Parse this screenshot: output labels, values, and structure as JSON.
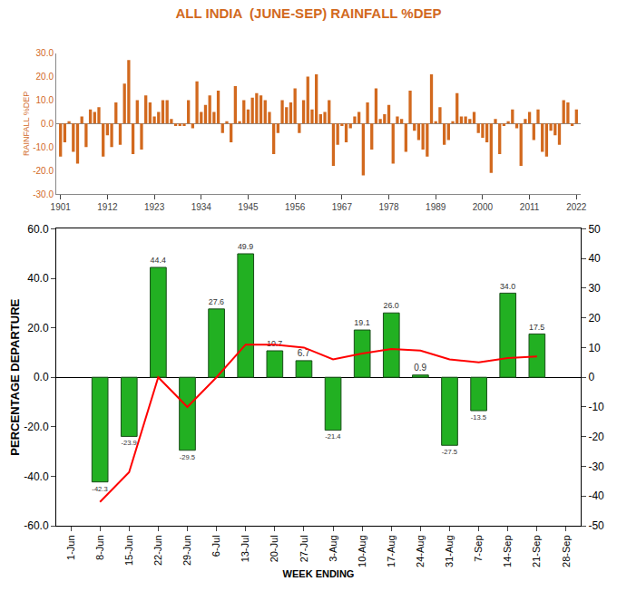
{
  "chart_data": [
    {
      "type": "bar",
      "title": "ALL INDIA  (JUNE-SEP) RAINFALL %DEP",
      "y_label": "RAINFALL %DEP",
      "color": "#d2691e",
      "x": [
        1901,
        1902,
        1903,
        1904,
        1905,
        1906,
        1907,
        1908,
        1909,
        1910,
        1911,
        1912,
        1913,
        1914,
        1915,
        1916,
        1917,
        1918,
        1919,
        1920,
        1921,
        1922,
        1923,
        1924,
        1925,
        1926,
        1927,
        1928,
        1929,
        1930,
        1931,
        1932,
        1933,
        1934,
        1935,
        1936,
        1937,
        1938,
        1939,
        1940,
        1941,
        1942,
        1943,
        1944,
        1945,
        1946,
        1947,
        1948,
        1949,
        1950,
        1951,
        1952,
        1953,
        1954,
        1955,
        1956,
        1957,
        1958,
        1959,
        1960,
        1961,
        1962,
        1963,
        1964,
        1965,
        1966,
        1967,
        1968,
        1969,
        1970,
        1971,
        1972,
        1973,
        1974,
        1975,
        1976,
        1977,
        1978,
        1979,
        1980,
        1981,
        1982,
        1983,
        1984,
        1985,
        1986,
        1987,
        1988,
        1989,
        1990,
        1991,
        1992,
        1993,
        1994,
        1995,
        1996,
        1997,
        1998,
        1999,
        2000,
        2001,
        2002,
        2003,
        2004,
        2005,
        2006,
        2007,
        2008,
        2009,
        2010,
        2011,
        2012,
        2013,
        2014,
        2015,
        2016,
        2017,
        2018,
        2019,
        2020,
        2021,
        2022
      ],
      "values": [
        -14,
        -8,
        1,
        -12,
        -17,
        3,
        -10,
        6,
        5,
        7,
        -14,
        -5,
        -10,
        9,
        -9,
        17,
        27,
        -13,
        10,
        -11,
        12,
        9,
        3,
        5,
        10,
        10,
        2,
        -1,
        -1,
        -1,
        10,
        -2,
        18,
        5,
        8,
        12,
        5,
        14,
        -4,
        1,
        -8,
        16,
        1,
        10,
        6,
        11,
        13,
        12,
        10,
        5,
        -13,
        -4,
        10,
        7,
        9,
        15,
        -4,
        10,
        20,
        6,
        21,
        4,
        5,
        10,
        -18,
        -9,
        -1,
        -8,
        -2,
        3,
        5,
        -22,
        9,
        -11,
        15,
        2,
        4,
        8,
        -17,
        3,
        2,
        -12,
        14,
        -3,
        -7,
        -11,
        -14,
        21,
        1,
        7,
        -9,
        -7,
        1,
        13,
        3,
        3,
        2,
        5,
        -4,
        -6,
        -8,
        -21,
        2,
        -13,
        -1,
        1,
        6,
        -2,
        -18,
        2,
        5,
        -7,
        6,
        -12,
        -14,
        -3,
        -5,
        -9,
        10,
        9,
        -1,
        6
      ],
      "xlim": [
        1900,
        2023
      ],
      "xticks": [
        1901,
        1912,
        1923,
        1934,
        1945,
        1956,
        1967,
        1978,
        1989,
        2000,
        2011,
        2022
      ],
      "ylim": [
        -30,
        30
      ],
      "yticks": [
        {
          "value": -30,
          "label": "-30.0"
        },
        {
          "value": -20,
          "label": "-20.0"
        },
        {
          "value": -10,
          "label": "-10.0"
        },
        {
          "value": 0,
          "label": "0.0"
        },
        {
          "value": 10,
          "label": "10.0"
        },
        {
          "value": 20,
          "label": "20.0"
        },
        {
          "value": 30,
          "label": "30.0"
        }
      ],
      "grid": false
    },
    {
      "type": "bar",
      "y_label": "PERCENTAGE DEPARTURE",
      "x_label": "WEEK ENDING",
      "categories": [
        "1-Jun",
        "8-Jun",
        "15-Jun",
        "22-Jun",
        "29-Jun",
        "6-Jul",
        "13-Jul",
        "20-Jul",
        "27-Jul",
        "3-Aug",
        "10-Aug",
        "17-Aug",
        "24-Aug",
        "31-Aug",
        "7-Sep",
        "14-Sep",
        "21-Sep",
        "28-Sep"
      ],
      "series": [
        {
          "type": "bar",
          "color": "#22b022",
          "values": [
            null,
            -42.3,
            -23.9,
            44.4,
            -29.5,
            27.6,
            49.9,
            10.7,
            6.7,
            -21.4,
            19.1,
            26.0,
            0.9,
            -27.5,
            -13.5,
            34.0,
            17.5,
            null
          ],
          "value_labels": [
            null,
            "-42.3",
            "-23.9",
            "44.4",
            "-29.5",
            "27.6",
            "49.9",
            "10.7",
            "6.7",
            "-21.4",
            "19.1",
            "26.0",
            "0.9",
            "-27.5",
            "-13.5",
            "34.0",
            "17.5",
            null
          ]
        },
        {
          "type": "line",
          "axis": "y2",
          "color": "#ff0000",
          "values": [
            null,
            -42,
            -32,
            0,
            -10,
            0,
            11,
            11,
            10,
            6,
            8,
            9.5,
            9,
            6,
            5,
            6.5,
            7,
            null
          ]
        }
      ],
      "ylim": [
        -60,
        60
      ],
      "yticks": [
        {
          "value": -60,
          "label": "-60.0"
        },
        {
          "value": -40,
          "label": "-40.0"
        },
        {
          "value": -20,
          "label": "-20.0"
        },
        {
          "value": 0,
          "label": "0.0"
        },
        {
          "value": 20,
          "label": "20.0"
        },
        {
          "value": 40,
          "label": "40.0"
        },
        {
          "value": 60,
          "label": "60.0"
        }
      ],
      "y2lim": [
        -50,
        50
      ],
      "y2ticks": [
        -50,
        -40,
        -30,
        -20,
        -10,
        0,
        10,
        20,
        30,
        40,
        50
      ],
      "data_labels": true,
      "grid": false
    }
  ]
}
